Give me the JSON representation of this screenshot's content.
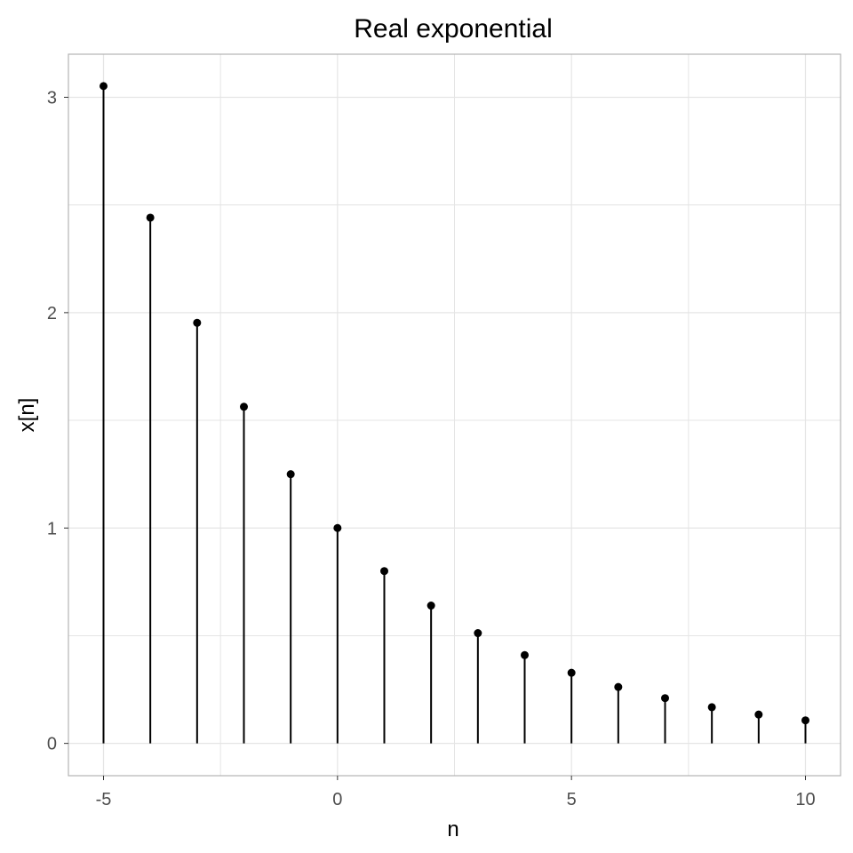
{
  "chart_data": {
    "type": "stem",
    "title": "Real exponential",
    "xlabel": "n",
    "ylabel": "x[n]",
    "x": [
      -5,
      -4,
      -3,
      -2,
      -1,
      0,
      1,
      2,
      3,
      4,
      5,
      6,
      7,
      8,
      9,
      10
    ],
    "y": [
      3.052,
      2.441,
      1.953,
      1.563,
      1.25,
      1.0,
      0.8,
      0.64,
      0.512,
      0.41,
      0.328,
      0.262,
      0.21,
      0.168,
      0.134,
      0.107
    ],
    "x_ticks": [
      -5,
      0,
      5,
      10
    ],
    "y_ticks": [
      0,
      1,
      2,
      3
    ],
    "xlim": [
      -5.75,
      10.75
    ],
    "ylim": [
      -0.15,
      3.2
    ],
    "grid": true,
    "colors": {
      "stem": "#000000",
      "point": "#000000",
      "grid": "#e5e5e5",
      "panel_border": "#b3b3b3"
    }
  }
}
